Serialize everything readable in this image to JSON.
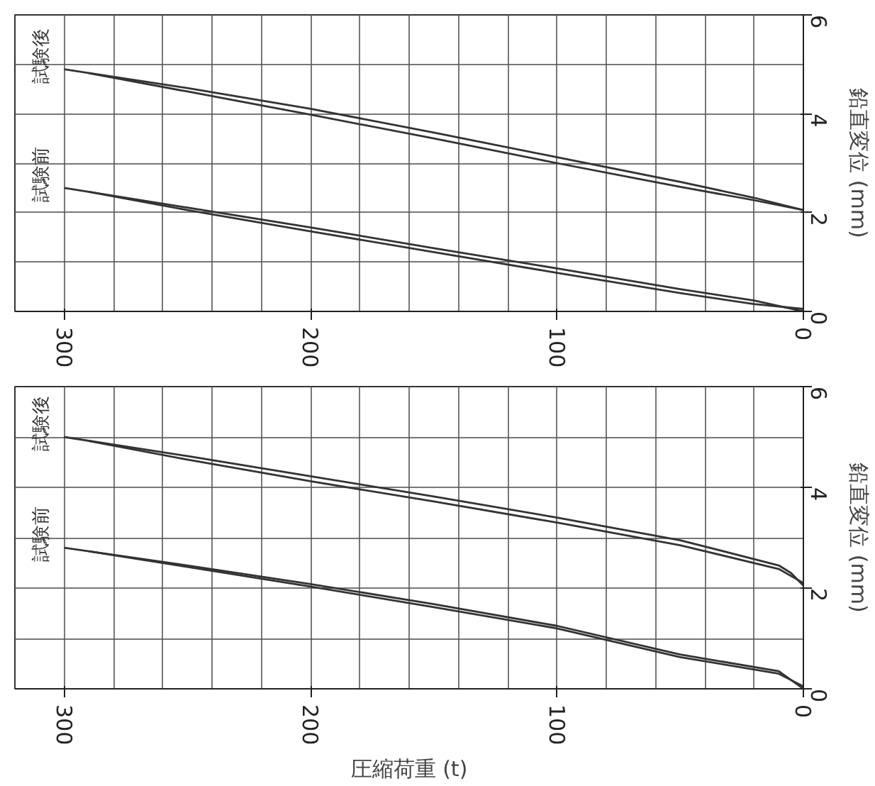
{
  "chart_data": [
    {
      "type": "line",
      "xlim": [
        320,
        0
      ],
      "xticks": [
        300,
        200,
        100,
        0
      ],
      "ylim": [
        0,
        6
      ],
      "yticks": [
        0,
        2,
        4,
        6
      ],
      "ylabel": "鉛直変位 (mm)",
      "grid": true,
      "legend": false,
      "series": [
        {
          "name": "試験前",
          "color": "#333333",
          "x": [
            0,
            20,
            50,
            100,
            150,
            200,
            250,
            300
          ],
          "values": [
            0,
            0.22,
            0.45,
            0.87,
            1.28,
            1.7,
            2.1,
            2.5
          ]
        },
        {
          "color": "#333333",
          "x": [
            0,
            20,
            50,
            100,
            150,
            200,
            250,
            290
          ],
          "values": [
            0.05,
            0.15,
            0.37,
            0.78,
            1.2,
            1.62,
            2.05,
            2.42
          ]
        },
        {
          "name": "試験後",
          "color": "#333333",
          "x": [
            0,
            20,
            50,
            100,
            150,
            200,
            250,
            300
          ],
          "values": [
            2.05,
            2.3,
            2.62,
            3.12,
            3.62,
            4.1,
            4.52,
            4.9
          ]
        },
        {
          "color": "#333333",
          "x": [
            0,
            20,
            50,
            100,
            150,
            200,
            250,
            290
          ],
          "values": [
            2.05,
            2.25,
            2.52,
            3.0,
            3.5,
            3.98,
            4.45,
            4.82
          ]
        }
      ]
    },
    {
      "type": "line",
      "xlim": [
        320,
        0
      ],
      "xticks": [
        300,
        200,
        100,
        0
      ],
      "ylim": [
        0,
        6
      ],
      "yticks": [
        0,
        2,
        4,
        6
      ],
      "xlabel": "圧縮荷重 (t)",
      "ylabel": "鉛直変位 (mm)",
      "grid": true,
      "legend": false,
      "series": [
        {
          "name": "試験前",
          "color": "#333333",
          "x": [
            0,
            10,
            50,
            100,
            150,
            200,
            250,
            300
          ],
          "values": [
            0,
            0.35,
            0.68,
            1.25,
            1.68,
            2.08,
            2.45,
            2.8
          ]
        },
        {
          "color": "#333333",
          "x": [
            0,
            10,
            50,
            100,
            150,
            200,
            250,
            290
          ],
          "values": [
            0.05,
            0.3,
            0.63,
            1.2,
            1.62,
            2.03,
            2.42,
            2.73
          ]
        },
        {
          "name": "試験後",
          "color": "#333333",
          "x": [
            0,
            5,
            10,
            50,
            100,
            150,
            200,
            250,
            300
          ],
          "values": [
            2.05,
            2.3,
            2.45,
            2.95,
            3.4,
            3.82,
            4.22,
            4.62,
            5.0
          ]
        },
        {
          "color": "#333333",
          "x": [
            0,
            10,
            50,
            100,
            150,
            200,
            250,
            290
          ],
          "values": [
            2.1,
            2.38,
            2.85,
            3.3,
            3.72,
            4.12,
            4.55,
            4.92
          ]
        }
      ]
    }
  ]
}
